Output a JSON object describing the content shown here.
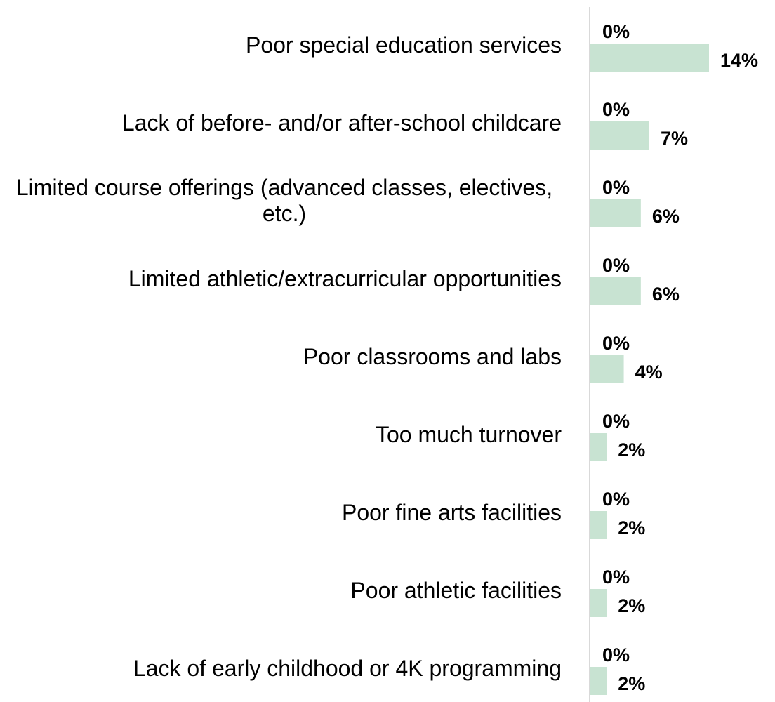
{
  "chart_data": {
    "type": "bar",
    "orientation": "horizontal",
    "categories": [
      "Poor special education services",
      "Lack of before- and/or after-school childcare",
      "Limited course offerings (advanced classes, electives, etc.)",
      "Limited athletic/extracurricular opportunities",
      "Poor classrooms and labs",
      "Too much turnover",
      "Poor fine arts facilities",
      "Poor athletic facilities",
      "Lack of early childhood or 4K programming"
    ],
    "series": [
      {
        "color": "#4e8fc7",
        "values": [
          0,
          0,
          0,
          0,
          0,
          0,
          0,
          0,
          0
        ],
        "value_labels": [
          "0%",
          "0%",
          "0%",
          "0%",
          "0%",
          "0%",
          "0%",
          "0%",
          "0%"
        ]
      },
      {
        "color": "#c8e3d2",
        "values": [
          14,
          7,
          6,
          6,
          4,
          2,
          2,
          2,
          2
        ],
        "value_labels": [
          "14%",
          "7%",
          "6%",
          "6%",
          "4%",
          "2%",
          "2%",
          "2%",
          "2%"
        ]
      }
    ]
  }
}
